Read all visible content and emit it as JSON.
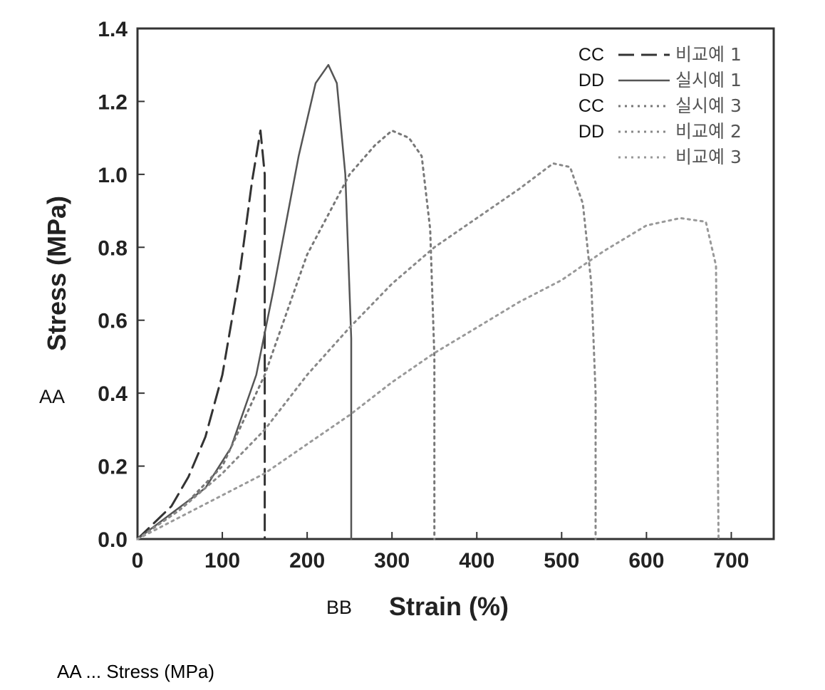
{
  "chart_data": {
    "type": "line",
    "title": "",
    "xlabel": "Strain (%)",
    "ylabel": "Stress (MPa)",
    "xlim": [
      0,
      750
    ],
    "ylim": [
      0,
      1.4
    ],
    "x_ticks": [
      "0",
      "100",
      "200",
      "300",
      "400",
      "500",
      "600",
      "700"
    ],
    "y_ticks": [
      "0.0",
      "0.2",
      "0.4",
      "0.6",
      "0.8",
      "1.0",
      "1.2",
      "1.4"
    ],
    "grid": false,
    "legend_position": "top-right",
    "series": [
      {
        "name": "비교예 1",
        "code": "CC",
        "style": "dash",
        "color": "#333333",
        "x": [
          0,
          40,
          60,
          80,
          100,
          120,
          135,
          145,
          150,
          150
        ],
        "y": [
          0,
          0.09,
          0.17,
          0.28,
          0.45,
          0.72,
          0.98,
          1.12,
          1.0,
          0.0
        ]
      },
      {
        "name": "실시예 1",
        "code": "DD",
        "style": "solid",
        "color": "#555555",
        "x": [
          0,
          40,
          80,
          110,
          140,
          160,
          190,
          210,
          225,
          235,
          245,
          252,
          252
        ],
        "y": [
          0,
          0.07,
          0.14,
          0.25,
          0.45,
          0.68,
          1.05,
          1.25,
          1.3,
          1.25,
          1.0,
          0.55,
          0.0
        ]
      },
      {
        "name": "실시예 3",
        "code": "CC",
        "style": "dot",
        "color": "#777777",
        "x": [
          0,
          50,
          100,
          150,
          200,
          250,
          280,
          300,
          320,
          335,
          345,
          350,
          350
        ],
        "y": [
          0,
          0.08,
          0.2,
          0.45,
          0.78,
          1.0,
          1.08,
          1.12,
          1.1,
          1.05,
          0.85,
          0.5,
          0.0
        ]
      },
      {
        "name": "비교예 2",
        "code": "DD",
        "style": "dot",
        "color": "#888888",
        "x": [
          0,
          50,
          100,
          150,
          200,
          250,
          300,
          350,
          400,
          450,
          490,
          510,
          525,
          535,
          540,
          540
        ],
        "y": [
          0,
          0.08,
          0.18,
          0.3,
          0.45,
          0.58,
          0.7,
          0.8,
          0.88,
          0.96,
          1.03,
          1.02,
          0.92,
          0.7,
          0.4,
          0.0
        ]
      },
      {
        "name": "비교예 3",
        "code": "",
        "style": "dot",
        "color": "#999999",
        "x": [
          0,
          100,
          150,
          200,
          250,
          300,
          350,
          400,
          450,
          500,
          550,
          600,
          640,
          670,
          682,
          685
        ],
        "y": [
          0,
          0.12,
          0.18,
          0.26,
          0.34,
          0.43,
          0.51,
          0.58,
          0.65,
          0.71,
          0.79,
          0.86,
          0.88,
          0.87,
          0.75,
          0.0
        ]
      }
    ]
  },
  "annotations": {
    "y_axis_marker": "AA",
    "x_axis_marker": "BB",
    "footnote": "AA ... Stress (MPa)"
  }
}
